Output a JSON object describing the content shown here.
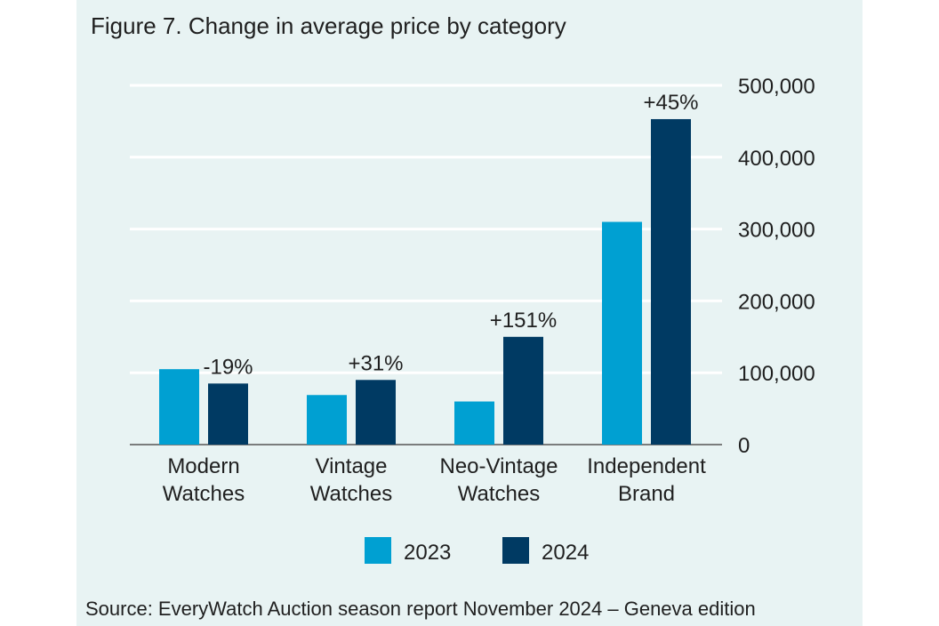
{
  "title": "Figure 7. Change in average price by category",
  "source": "Source: EveryWatch Auction season report November 2024 – Geneva edition",
  "chart_data": {
    "type": "bar",
    "categories": [
      [
        "Modern",
        "Watches"
      ],
      [
        "Vintage",
        "Watches"
      ],
      [
        "Neo-Vintage",
        "Watches"
      ],
      [
        "Independent",
        "Brand"
      ]
    ],
    "series": [
      {
        "name": "2023",
        "color": "#00a0d2",
        "values": [
          105000,
          69000,
          60000,
          310000
        ]
      },
      {
        "name": "2024",
        "color": "#003a63",
        "values": [
          85000,
          90000,
          150000,
          453000
        ]
      }
    ],
    "annotations": [
      "-19%",
      "+31%",
      "+151%",
      "+45%"
    ],
    "yticks": [
      "0",
      "100,000",
      "200,000",
      "300,000",
      "400,000",
      "500,000"
    ],
    "ytick_values": [
      0,
      100000,
      200000,
      300000,
      400000,
      500000
    ],
    "ylim": [
      0,
      500000
    ],
    "grid": true,
    "y_axis_side": "right",
    "legend_position": "bottom"
  }
}
